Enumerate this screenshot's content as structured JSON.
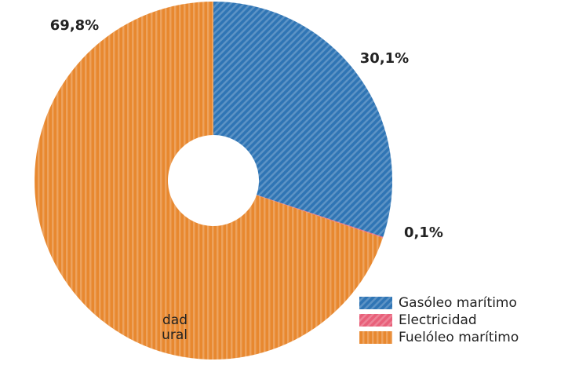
{
  "chart_data": {
    "type": "donut",
    "categories": [
      "Gasóleo marítimo",
      "Electricidad",
      "Fuelóleo marítimo"
    ],
    "values": [
      30.1,
      0.1,
      69.8
    ],
    "value_labels": [
      "30,1%",
      "0,1%",
      "69,8%"
    ],
    "colors": [
      "#2f75b5",
      "#e8607a",
      "#e8882f"
    ],
    "clipped_text": [
      "dad",
      "ural"
    ]
  }
}
